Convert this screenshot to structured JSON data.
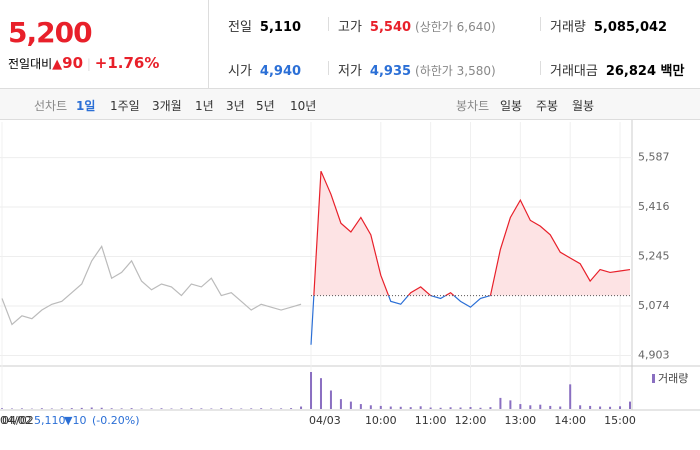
{
  "header": {
    "price": "5,200",
    "change_label": "전일대비",
    "change": "90",
    "change_pct": "+1.76%",
    "stats": [
      {
        "label": "전일",
        "value": "5,110"
      },
      {
        "label": "고가",
        "value": "5,540",
        "extra": "(상한가 6,640)"
      },
      {
        "label": "거래량",
        "value": "5,085,042"
      },
      {
        "label": "시가",
        "value": "4,940"
      },
      {
        "label": "저가",
        "value": "4,935",
        "extra": "(하한가 3,580)"
      },
      {
        "label": "거래대금",
        "value": "26,824 백만"
      }
    ]
  },
  "tabs": {
    "line_label": "선차트",
    "line": [
      "1일",
      "1주일",
      "3개월",
      "1년",
      "3년",
      "5년",
      "10년"
    ],
    "candle_label": "봉차트",
    "candle": [
      "일봉",
      "주봉",
      "월봉"
    ]
  },
  "footer": {
    "date": "04/02",
    "close": "5,110",
    "change": "▼10",
    "pct": "(-0.20%)"
  },
  "chart_data": {
    "type": "line",
    "baseline": 5110,
    "categories": [
      "04/02",
      null,
      null,
      null,
      null,
      null,
      null,
      null,
      null,
      null,
      null,
      null,
      null,
      null,
      null,
      null,
      null,
      null,
      null,
      null,
      null,
      null,
      null,
      null,
      null,
      null,
      null,
      null,
      null,
      null,
      null,
      "04/03",
      null,
      null,
      null,
      null,
      null,
      null,
      "10:00",
      null,
      null,
      null,
      null,
      "11:00",
      null,
      null,
      null,
      "12:00",
      null,
      null,
      null,
      null,
      "13:00",
      null,
      null,
      null,
      null,
      "14:00",
      null,
      null,
      null,
      null,
      "15:00",
      null
    ],
    "series": [
      {
        "color": "#bbbbbb",
        "values": [
          5100,
          5010,
          5040,
          5030,
          5060,
          5080,
          5090,
          5120,
          5150,
          5230,
          5280,
          5170,
          5190,
          5230,
          5160,
          5130,
          5150,
          5140,
          5110,
          5150,
          5140,
          5170,
          5110,
          5120,
          5090,
          5060,
          5080,
          5070,
          5060,
          5070,
          5080,
          null,
          null,
          null,
          null,
          null,
          null,
          null,
          null,
          null,
          null,
          null,
          null,
          null,
          null,
          null,
          null,
          null,
          null,
          null,
          null,
          null,
          null,
          null,
          null,
          null,
          null,
          null,
          null,
          null,
          null,
          null,
          null,
          null
        ]
      },
      {
        "color": "#e8202a",
        "color_down": "#2b6fd6",
        "fill": "#fde3e4",
        "values": [
          null,
          null,
          null,
          null,
          null,
          null,
          null,
          null,
          null,
          null,
          null,
          null,
          null,
          null,
          null,
          null,
          null,
          null,
          null,
          null,
          null,
          null,
          null,
          null,
          null,
          null,
          null,
          null,
          null,
          null,
          null,
          4940,
          5540,
          5460,
          5360,
          5330,
          5380,
          5320,
          5180,
          5090,
          5080,
          5120,
          5140,
          5110,
          5100,
          5120,
          5090,
          5070,
          5100,
          5110,
          5270,
          5380,
          5440,
          5370,
          5350,
          5320,
          5260,
          5240,
          5220,
          5160,
          5200,
          5190,
          5195,
          5200
        ]
      },
      {
        "name": "거래량",
        "type": "bar",
        "color": "#8a6fc1",
        "values": [
          6,
          4,
          5,
          3,
          6,
          4,
          5,
          7,
          9,
          12,
          10,
          6,
          5,
          7,
          4,
          5,
          6,
          4,
          5,
          6,
          5,
          4,
          6,
          5,
          4,
          5,
          6,
          4,
          5,
          7,
          20,
          300,
          250,
          150,
          80,
          60,
          40,
          30,
          25,
          20,
          18,
          15,
          22,
          12,
          10,
          14,
          12,
          16,
          10,
          15,
          90,
          70,
          40,
          30,
          35,
          25,
          20,
          200,
          30,
          25,
          20,
          18,
          22,
          60
        ]
      }
    ],
    "ylim": [
      4870,
      5710
    ],
    "yticks": [
      {
        "value": 4903,
        "label": "4,903"
      },
      {
        "value": 5074,
        "label": "5,074"
      },
      {
        "value": 5245,
        "label": "5,245"
      },
      {
        "value": 5416,
        "label": "5,416"
      },
      {
        "value": 5587,
        "label": "5,587"
      }
    ],
    "grid": true
  }
}
